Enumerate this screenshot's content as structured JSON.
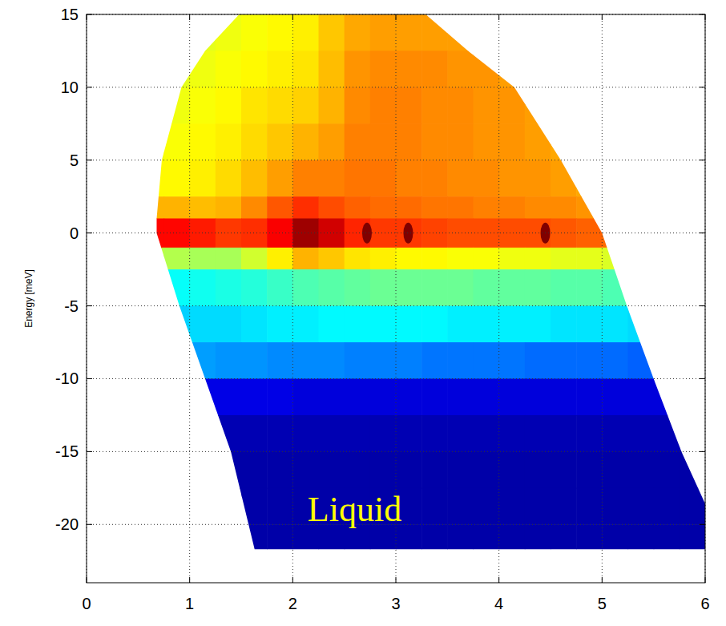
{
  "chart_data": {
    "type": "heatmap",
    "ylabel": "Energy [meV]",
    "xlim": [
      0,
      6
    ],
    "ylim": [
      -24,
      15
    ],
    "xticks": [
      0,
      1,
      2,
      3,
      4,
      5,
      6
    ],
    "yticks": [
      -20,
      -15,
      -10,
      -5,
      0,
      5,
      10,
      15
    ],
    "grid": true,
    "color": "jet",
    "zlim": [
      0,
      10
    ],
    "annotations": [
      {
        "text": "Liquid",
        "x": 2.6,
        "y": -19
      }
    ],
    "coverage": {
      "x": [
        1.63,
        1.4,
        1.15,
        0.9,
        0.68,
        0.68,
        0.73,
        0.92,
        1.15,
        1.48,
        3.29,
        3.7,
        4.15,
        4.6,
        5.0,
        5.24,
        5.5,
        5.77,
        6.2
      ],
      "y": [
        -21.7,
        -15,
        -10,
        -5,
        0,
        1,
        5,
        10,
        12.5,
        15,
        15,
        12.5,
        10,
        5,
        0,
        -5,
        -10,
        -15,
        -21.7
      ]
    },
    "x_edges": [
      0.5,
      0.75,
      1,
      1.25,
      1.5,
      1.75,
      2,
      2.25,
      2.5,
      2.75,
      3,
      3.25,
      3.5,
      3.75,
      4,
      4.25,
      4.5,
      4.75,
      5,
      5.25,
      5.5,
      5.75,
      6
    ],
    "y_edges": [
      15,
      12.5,
      10,
      7.5,
      5,
      2.5,
      1,
      -1,
      -2.5,
      -5,
      -7.5,
      -10,
      -12.5,
      -15,
      -17.5,
      -20,
      -22.5
    ],
    "cells": [
      [
        6.0,
        6.0,
        6.0,
        6.1,
        6.2,
        6.3,
        6.4,
        6.8,
        7.1,
        7.2,
        7.2,
        7.2,
        7.2,
        7.2,
        7.2,
        7.2,
        7.2,
        7.2,
        7.2,
        7.2,
        7.2,
        7.2
      ],
      [
        6.0,
        6.0,
        6.1,
        6.2,
        6.3,
        6.4,
        6.5,
        6.9,
        7.3,
        7.4,
        7.4,
        7.4,
        7.3,
        7.3,
        7.2,
        7.2,
        7.2,
        7.2,
        7.2,
        7.2,
        7.2,
        7.2
      ],
      [
        6.0,
        6.1,
        6.2,
        6.3,
        6.5,
        6.6,
        6.7,
        7.0,
        7.4,
        7.5,
        7.5,
        7.4,
        7.4,
        7.3,
        7.3,
        7.2,
        7.2,
        7.2,
        7.2,
        7.2,
        7.2,
        7.2
      ],
      [
        6.1,
        6.2,
        6.3,
        6.4,
        6.6,
        6.8,
        7.0,
        7.2,
        7.5,
        7.5,
        7.5,
        7.4,
        7.4,
        7.3,
        7.3,
        7.2,
        7.1,
        7.0,
        7.0,
        7.0,
        7.0,
        7.0
      ],
      [
        6.3,
        6.3,
        6.4,
        6.6,
        6.9,
        7.2,
        7.5,
        7.5,
        7.6,
        7.6,
        7.5,
        7.5,
        7.4,
        7.4,
        7.3,
        7.3,
        7.2,
        7.1,
        7.0,
        7.0,
        7.0,
        7.0
      ],
      [
        7.0,
        7.0,
        6.9,
        7.0,
        7.4,
        7.9,
        8.3,
        8.0,
        7.8,
        7.7,
        7.7,
        7.6,
        7.6,
        7.5,
        7.5,
        7.4,
        7.4,
        7.3,
        7.2,
        7.2,
        7.2,
        7.2
      ],
      [
        8.7,
        8.7,
        8.5,
        8.2,
        8.3,
        8.8,
        9.7,
        9.2,
        8.4,
        8.2,
        8.2,
        8.1,
        8.0,
        8.0,
        8.0,
        8.0,
        7.9,
        7.8,
        7.7,
        7.7,
        7.7,
        7.7
      ],
      [
        5.6,
        5.5,
        5.4,
        5.4,
        5.8,
        6.4,
        7.0,
        6.8,
        6.5,
        6.4,
        6.3,
        6.3,
        6.2,
        6.2,
        6.1,
        6.1,
        6.0,
        6.0,
        5.9,
        5.9,
        5.8,
        5.8
      ],
      [
        3.8,
        3.8,
        3.9,
        4.0,
        4.1,
        4.3,
        4.5,
        4.6,
        4.7,
        4.8,
        4.8,
        4.8,
        4.8,
        4.7,
        4.7,
        4.7,
        4.6,
        4.6,
        4.5,
        4.5,
        4.4,
        4.4
      ],
      [
        3.3,
        3.3,
        3.4,
        3.4,
        3.5,
        3.6,
        3.6,
        3.7,
        3.7,
        3.7,
        3.7,
        3.7,
        3.6,
        3.6,
        3.6,
        3.6,
        3.5,
        3.5,
        3.5,
        3.4,
        3.4,
        3.4
      ],
      [
        2.8,
        2.8,
        2.8,
        2.7,
        2.7,
        2.6,
        2.6,
        2.6,
        2.5,
        2.5,
        2.5,
        2.4,
        2.4,
        2.4,
        2.4,
        2.3,
        2.3,
        2.3,
        2.3,
        2.2,
        2.2,
        2.2
      ],
      [
        1.0,
        1.0,
        1.0,
        1.0,
        1.0,
        1.0,
        0.9,
        0.9,
        0.9,
        0.9,
        0.9,
        0.9,
        0.9,
        0.9,
        0.9,
        0.9,
        0.9,
        0.9,
        0.9,
        0.9,
        0.9,
        0.9
      ],
      [
        0.5,
        0.5,
        0.5,
        0.5,
        0.5,
        0.5,
        0.5,
        0.5,
        0.5,
        0.5,
        0.5,
        0.5,
        0.5,
        0.5,
        0.5,
        0.5,
        0.5,
        0.5,
        0.5,
        0.5,
        0.5,
        0.5
      ],
      [
        0.4,
        0.4,
        0.4,
        0.4,
        0.4,
        0.4,
        0.4,
        0.4,
        0.4,
        0.4,
        0.4,
        0.4,
        0.4,
        0.4,
        0.4,
        0.4,
        0.4,
        0.4,
        0.4,
        0.4,
        0.4,
        0.4
      ],
      [
        0.4,
        0.4,
        0.4,
        0.4,
        0.4,
        0.4,
        0.4,
        0.4,
        0.4,
        0.4,
        0.4,
        0.4,
        0.4,
        0.4,
        0.4,
        0.4,
        0.4,
        0.4,
        0.4,
        0.4,
        0.4,
        0.4
      ],
      [
        0.4,
        0.4,
        0.4,
        0.4,
        0.4,
        0.4,
        0.4,
        0.4,
        0.4,
        0.4,
        0.4,
        0.4,
        0.4,
        0.4,
        0.4,
        0.4,
        0.4,
        0.4,
        0.4,
        0.4,
        0.4,
        0.4
      ]
    ],
    "peaks": {
      "x": [
        2.72,
        3.12,
        4.45
      ],
      "y": [
        0,
        0,
        0
      ],
      "values": [
        10,
        10,
        10
      ]
    }
  }
}
